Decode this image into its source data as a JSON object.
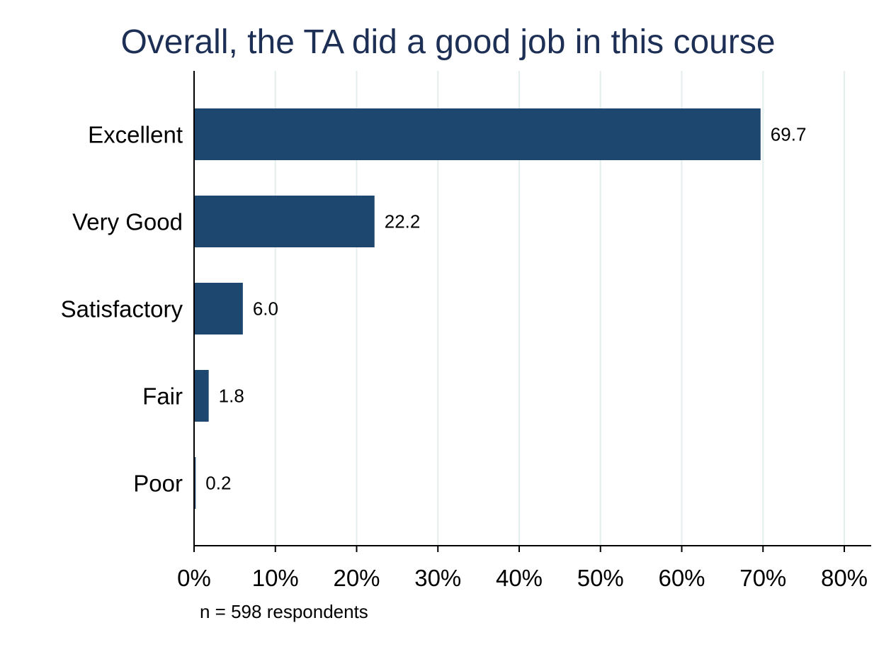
{
  "chart_data": {
    "type": "bar",
    "orientation": "horizontal",
    "title": "Overall, the TA did a good job in this course",
    "categories": [
      "Excellent",
      "Very Good",
      "Satisfactory",
      "Fair",
      "Poor"
    ],
    "values": [
      69.7,
      22.2,
      6.0,
      1.8,
      0.2
    ],
    "value_labels": [
      "69.7",
      "22.2",
      "6.0",
      "1.8",
      "0.2"
    ],
    "xlim": [
      0,
      80
    ],
    "x_ticks": [
      0,
      10,
      20,
      30,
      40,
      50,
      60,
      70,
      80
    ],
    "x_tick_labels": [
      "0%",
      "10%",
      "20%",
      "30%",
      "40%",
      "50%",
      "60%",
      "70%",
      "80%"
    ],
    "xlabel": "",
    "ylabel": "",
    "note": "n = 598 respondents",
    "grid": "vertical",
    "colors": {
      "bar": "#1d476f",
      "title": "#1d2f55",
      "grid": "#e4eeee",
      "axis": "#000000",
      "text": "#000000"
    }
  }
}
